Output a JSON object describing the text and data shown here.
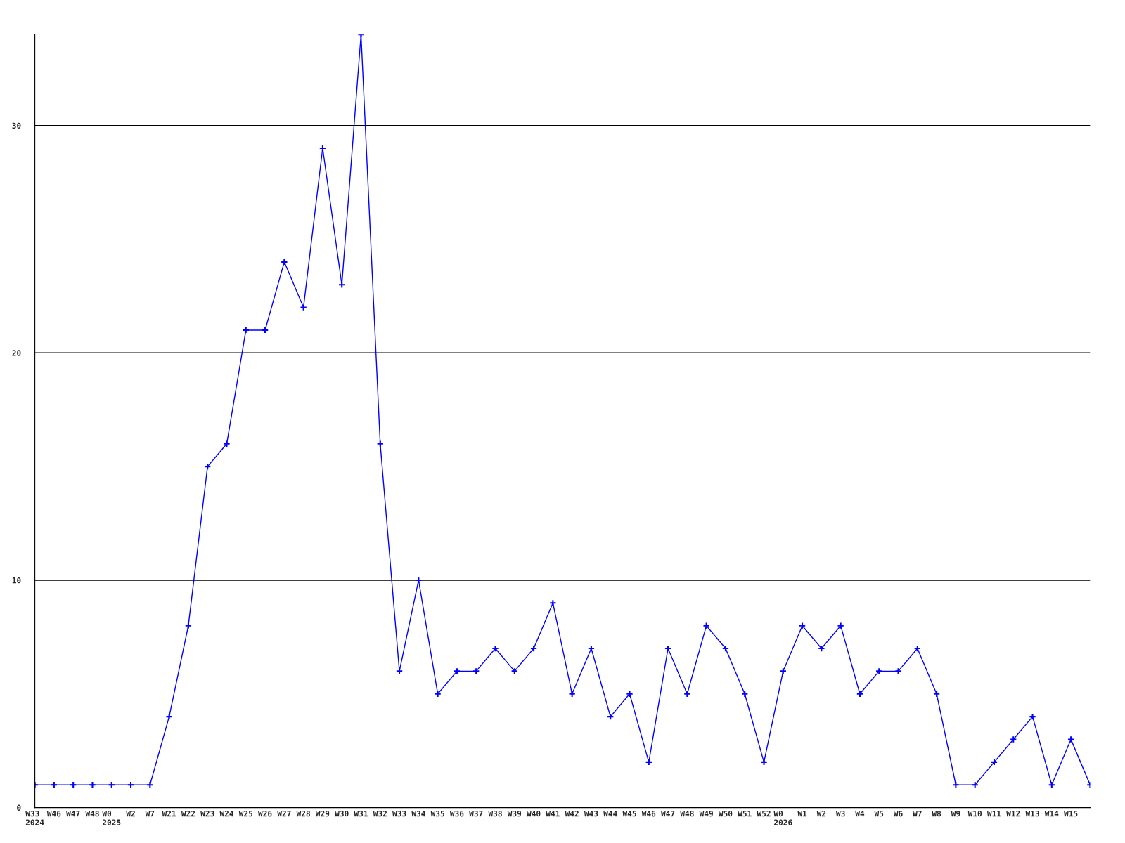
{
  "chart_data": {
    "type": "line",
    "categories": [
      "W33\n2024",
      "W46",
      "W47",
      "W48",
      "W0\n2025",
      "W2",
      "W7",
      "W21",
      "W22",
      "W23",
      "W24",
      "W25",
      "W26",
      "W27",
      "W28",
      "W29",
      "W30",
      "W31",
      "W32",
      "W33",
      "W34",
      "W35",
      "W36",
      "W37",
      "W38",
      "W39",
      "W40",
      "W41",
      "W42",
      "W43",
      "W44",
      "W45",
      "W46",
      "W47",
      "W48",
      "W49",
      "W50",
      "W51",
      "W52",
      "W0\n2026",
      "W1",
      "W2",
      "W3",
      "W4",
      "W5",
      "W6",
      "W7",
      "W8",
      "W9",
      "W10",
      "W11",
      "W12",
      "W13",
      "W14",
      "W15",
      null
    ],
    "series": [
      {
        "color": "#0000ff",
        "values": [
          1,
          1,
          1,
          1,
          1,
          1,
          1,
          4,
          8,
          15,
          16,
          21,
          21,
          24,
          22,
          29,
          23,
          34,
          16,
          6,
          10,
          5,
          6,
          6,
          7,
          6,
          7,
          9,
          5,
          7,
          4,
          5,
          2,
          7,
          5,
          8,
          7,
          5,
          2,
          6,
          8,
          7,
          8,
          5,
          6,
          6,
          7,
          5,
          1,
          1,
          2,
          3,
          4,
          1,
          3,
          1
        ]
      }
    ],
    "ylim": [
      0,
      34
    ],
    "yticks": [
      0,
      10,
      20,
      30
    ],
    "grid": "y",
    "marker": "cross",
    "line_style": "solid",
    "legend": false
  }
}
